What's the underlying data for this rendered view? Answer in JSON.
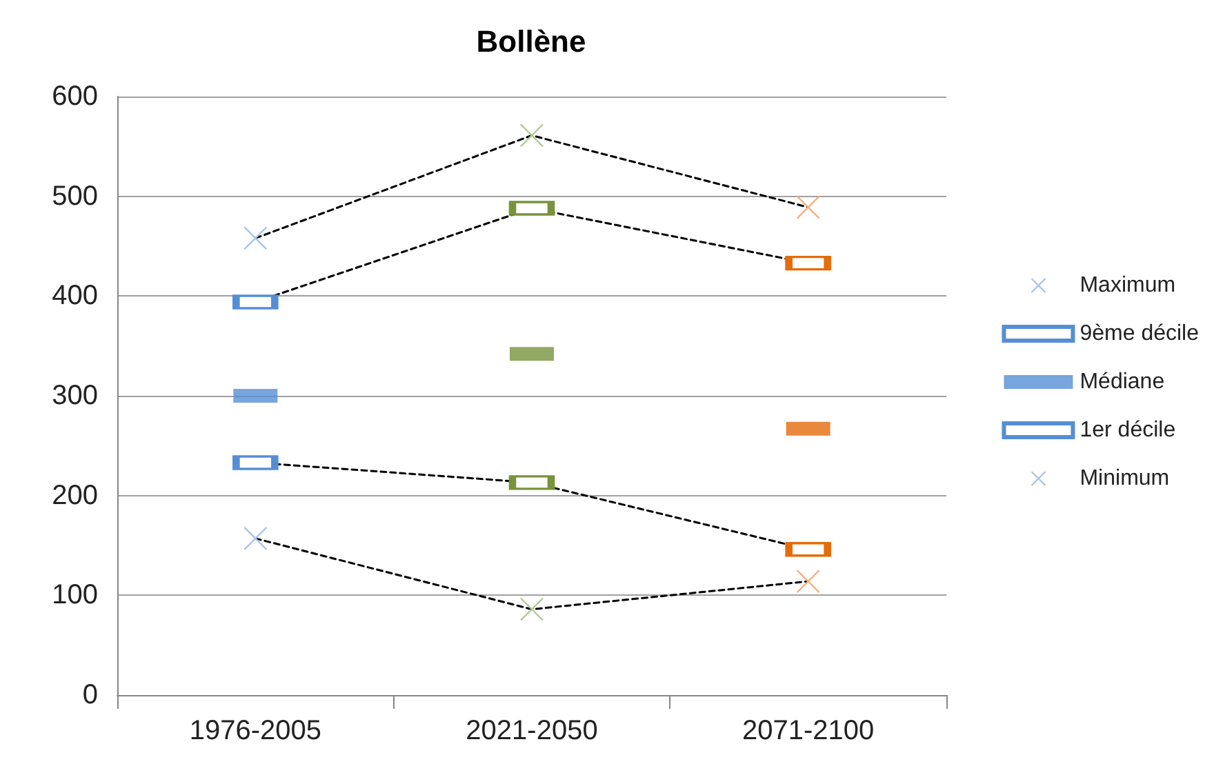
{
  "chart_data": {
    "type": "line",
    "title": "Bollène",
    "categories": [
      "1976-2005",
      "2021-2050",
      "2071-2100"
    ],
    "ylim": [
      0,
      600
    ],
    "yticks": [
      0,
      100,
      200,
      300,
      400,
      500,
      600
    ],
    "grid": "y",
    "legend": "right",
    "series": [
      {
        "name": "Maximum",
        "marker": "cross",
        "line_style": "dashed",
        "color": "#000000",
        "colors": [
          "#a9c4eb",
          "#b5c99a",
          "#f4b183"
        ],
        "values": [
          458,
          561,
          489
        ]
      },
      {
        "name": "9ème décile",
        "marker": "square",
        "line_style": "dashed",
        "color": "#000000",
        "colors": [
          "#558ed5",
          "#77933c",
          "#e46c0a"
        ],
        "values": [
          394,
          488,
          433
        ]
      },
      {
        "name": "Médiane",
        "type": "scatter",
        "marker": "square",
        "color": "#558ed5",
        "colors": [
          "#558ed5",
          "#77933c",
          "#e46c0a"
        ],
        "values": [
          300,
          342,
          267
        ]
      },
      {
        "name": "1er décile",
        "marker": "square",
        "line_style": "dashed",
        "color": "#000000",
        "colors": [
          "#558ed5",
          "#77933c",
          "#e46c0a"
        ],
        "values": [
          233,
          213,
          146
        ]
      },
      {
        "name": "Minimum",
        "marker": "cross",
        "line_style": "dashed",
        "color": "#000000",
        "colors": [
          "#a9c4eb",
          "#b5c99a",
          "#f4b183"
        ],
        "values": [
          157,
          86,
          114
        ]
      }
    ]
  }
}
